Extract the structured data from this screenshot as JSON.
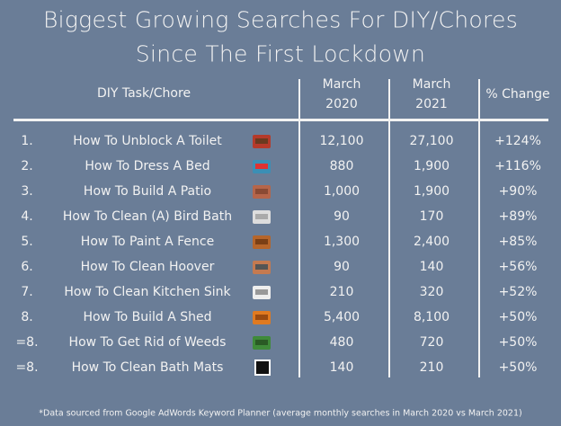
{
  "header": {
    "title": [
      "Biggest Growing Searches For DIY/Chores",
      "Since The First Lockdown"
    ]
  },
  "table": {
    "columns": [
      "DIY Task/Chore",
      "March 2020",
      "March 2021",
      "% Change"
    ],
    "rows": [
      [
        "1.",
        "How To Unblock A Toilet",
        "12,100",
        "27,100",
        "+124%"
      ],
      [
        "2.",
        "How To Dress A Bed",
        "880",
        "1,900",
        "+116%"
      ],
      [
        "3.",
        "How To Build A Patio",
        "1,000",
        "1,900",
        "+90%"
      ],
      [
        "4.",
        "How To Clean (A) Bird Bath",
        "90",
        "170",
        "+89%"
      ],
      [
        "5.",
        "How To Paint A Fence",
        "1,300",
        "2,400",
        "+85%"
      ],
      [
        "6.",
        "How To Clean Hoover",
        "90",
        "140",
        "+56%"
      ],
      [
        "7.",
        "How To Clean Kitchen Sink",
        "210",
        "320",
        "+52%"
      ],
      [
        "8.",
        "How To Build A Shed",
        "5,400",
        "8,100",
        "+50%"
      ],
      [
        "=8.",
        "How To Get Rid of Weeds",
        "480",
        "720",
        "+50%"
      ],
      [
        "=8.",
        "How To Clean Bath Mats",
        "140",
        "210",
        "+50%"
      ]
    ]
  },
  "footer": {
    "note": "*Data sourced from Google AdWords Keyword Planner (average monthly searches in March 2020 vs March 2021)"
  }
}
